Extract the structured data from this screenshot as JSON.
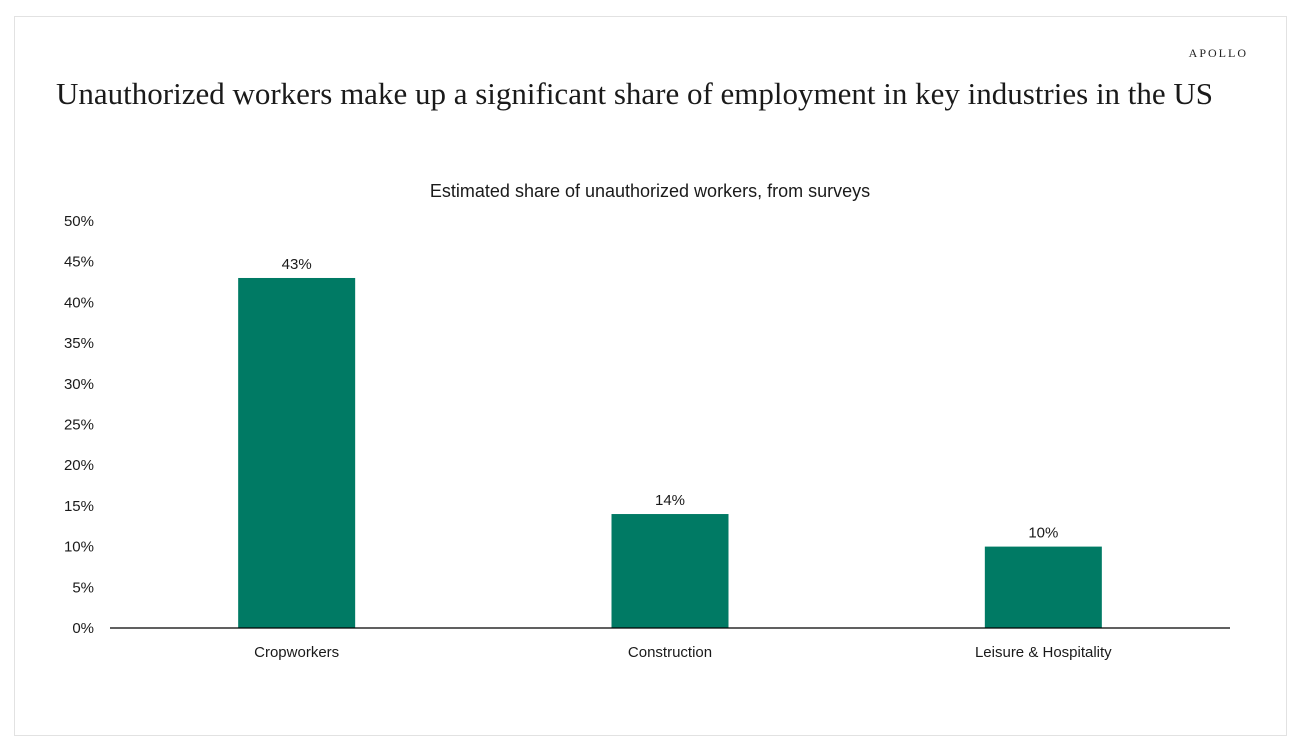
{
  "brand": "APOLLO",
  "headline": "Unauthorized workers make up a significant share of employment in key industries in the US",
  "colors": {
    "bar": "#007A64",
    "axis": "#000000",
    "text": "#1a1a1a"
  },
  "chart_data": {
    "type": "bar",
    "title": "Estimated share of unauthorized workers, from surveys",
    "categories": [
      "Cropworkers",
      "Construction",
      "Leisure & Hospitality"
    ],
    "values": [
      43,
      14,
      10
    ],
    "data_labels": [
      "43%",
      "14%",
      "10%"
    ],
    "xlabel": "",
    "ylabel": "",
    "ylim": [
      0,
      50
    ],
    "yticks": [
      0,
      5,
      10,
      15,
      20,
      25,
      30,
      35,
      40,
      45,
      50
    ],
    "ytick_labels": [
      "0%",
      "5%",
      "10%",
      "15%",
      "20%",
      "25%",
      "30%",
      "35%",
      "40%",
      "45%",
      "50%"
    ],
    "grid": false,
    "legend": "none"
  }
}
